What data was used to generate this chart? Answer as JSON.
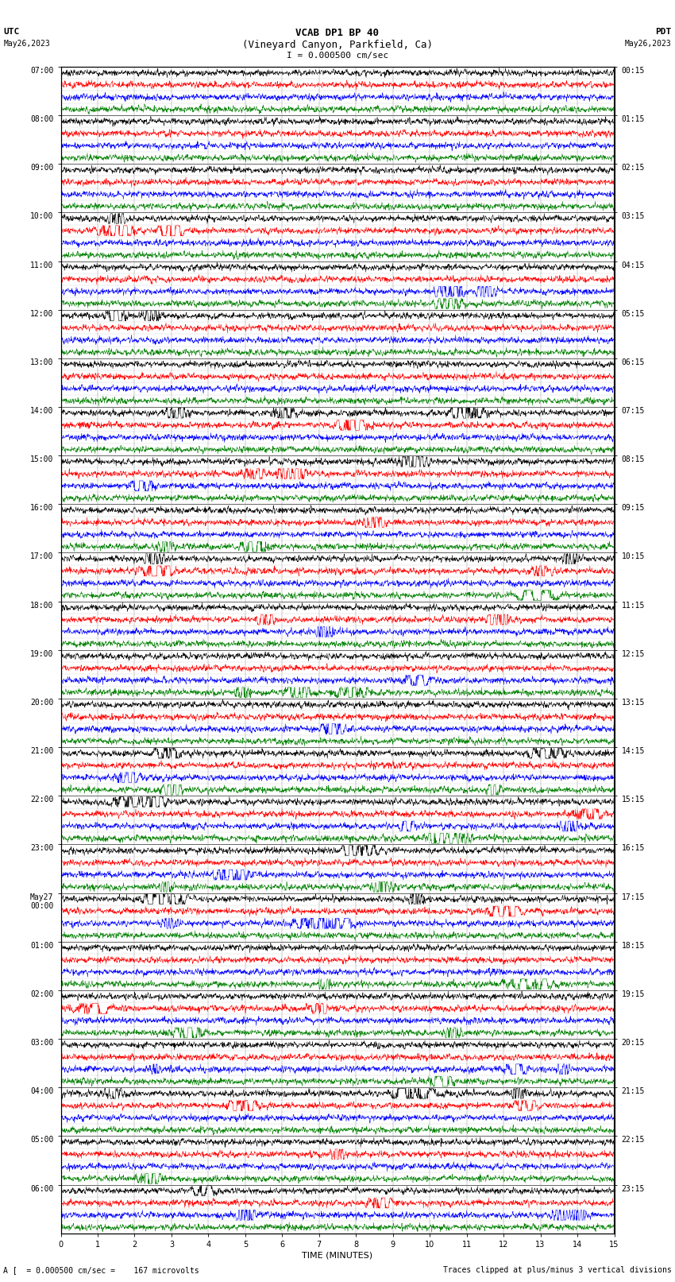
{
  "title_line1": "VCAB DP1 BP 40",
  "title_line2": "(Vineyard Canyon, Parkfield, Ca)",
  "title_scale": "I = 0.000500 cm/sec",
  "label_utc": "UTC",
  "label_pdt": "PDT",
  "label_date_left": "May26,2023",
  "label_date_right": "May26,2023",
  "xlabel": "TIME (MINUTES)",
  "footer_left": "A [  = 0.000500 cm/sec =    167 microvolts",
  "footer_right": "Traces clipped at plus/minus 3 vertical divisions",
  "xlim": [
    0,
    15
  ],
  "xticks": [
    0,
    1,
    2,
    3,
    4,
    5,
    6,
    7,
    8,
    9,
    10,
    11,
    12,
    13,
    14,
    15
  ],
  "row_colors": [
    "black",
    "red",
    "blue",
    "green"
  ],
  "utc_hour_labels": [
    "07:00",
    "08:00",
    "09:00",
    "10:00",
    "11:00",
    "12:00",
    "13:00",
    "14:00",
    "15:00",
    "16:00",
    "17:00",
    "18:00",
    "19:00",
    "20:00",
    "21:00",
    "22:00",
    "23:00",
    "May27\n00:00",
    "01:00",
    "02:00",
    "03:00",
    "04:00",
    "05:00",
    "06:00"
  ],
  "pdt_hour_labels": [
    "00:15",
    "01:15",
    "02:15",
    "03:15",
    "04:15",
    "05:15",
    "06:15",
    "07:15",
    "08:15",
    "09:15",
    "10:15",
    "11:15",
    "12:15",
    "13:15",
    "14:15",
    "15:15",
    "16:15",
    "17:15",
    "18:15",
    "19:15",
    "20:15",
    "21:15",
    "22:15",
    "23:15"
  ],
  "bg_color": "#ffffff",
  "title_fontsize": 9,
  "label_fontsize": 7,
  "tick_fontsize": 7,
  "footer_fontsize": 7,
  "num_hours": 24,
  "traces_per_hour": 4,
  "noise_base": 0.18,
  "clip_amp": 0.42
}
